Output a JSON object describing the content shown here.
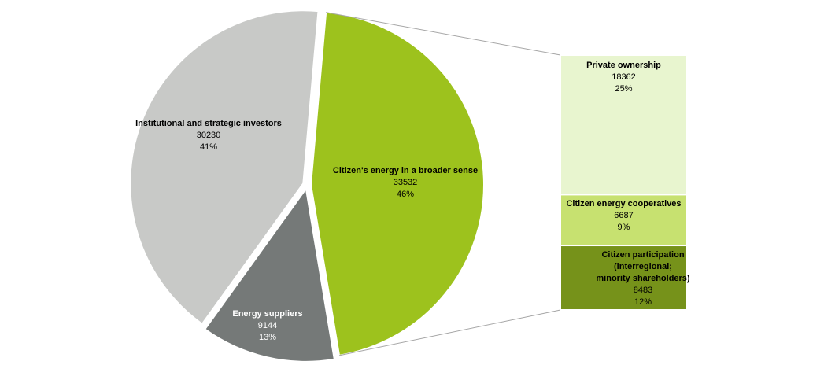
{
  "chart_data": {
    "type": "pie",
    "categories": [
      "Institutional  and strategic investors",
      "Energy suppliers",
      "Citizen's energy in a broader sense"
    ],
    "values": [
      30230,
      9144,
      33532
    ],
    "shares": [
      "41%",
      "13%",
      "46%"
    ],
    "colors": [
      "#c8c9c7",
      "#757978",
      "#9dc21d"
    ],
    "breakdown": {
      "type": "bar",
      "categories": [
        "Private ownership",
        "Citizen energy cooperatives",
        "Citizen participation (interregional; minority shareholders)"
      ],
      "values": [
        18362,
        6687,
        8483
      ],
      "shares": [
        "25%",
        "9%",
        "12%"
      ],
      "colors": [
        "#e8f5cf",
        "#c7e170",
        "#76921a"
      ]
    }
  }
}
